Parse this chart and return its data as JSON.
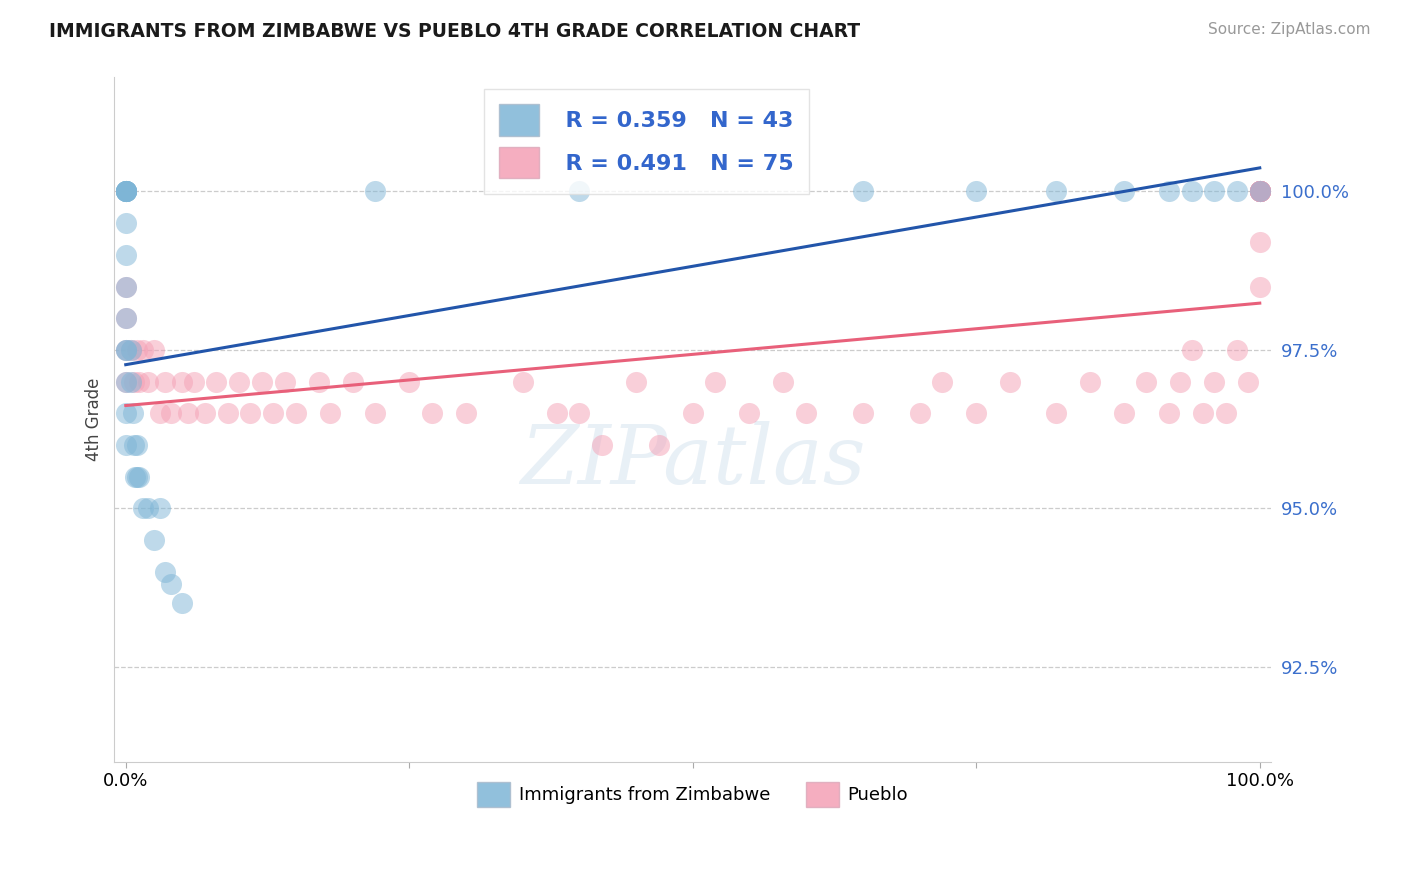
{
  "title": "IMMIGRANTS FROM ZIMBABWE VS PUEBLO 4TH GRADE CORRELATION CHART",
  "source": "Source: ZipAtlas.com",
  "ylabel": "4th Grade",
  "y_ticks": [
    92.5,
    95.0,
    97.5,
    100.0
  ],
  "y_tick_labels": [
    "92.5%",
    "95.0%",
    "97.5%",
    "100.0%"
  ],
  "ylim": [
    91.0,
    101.8
  ],
  "xlim": [
    -0.01,
    1.01
  ],
  "legend_blue_r": "R = 0.359",
  "legend_blue_n": "N = 43",
  "legend_pink_r": "R = 0.491",
  "legend_pink_n": "N = 75",
  "legend_label_blue": "Immigrants from Zimbabwe",
  "legend_label_pink": "Pueblo",
  "blue_color": "#7EB5D6",
  "pink_color": "#F4A0B5",
  "blue_line_color": "#2255AA",
  "pink_line_color": "#E8607A",
  "blue_points_x": [
    0.0,
    0.0,
    0.0,
    0.0,
    0.0,
    0.0,
    0.0,
    0.0,
    0.0,
    0.0,
    0.0,
    0.0,
    0.0,
    0.0,
    0.0,
    0.0,
    0.0,
    0.005,
    0.005,
    0.006,
    0.007,
    0.008,
    0.01,
    0.01,
    0.012,
    0.015,
    0.02,
    0.025,
    0.03,
    0.035,
    0.04,
    0.05,
    0.22,
    0.4,
    0.65,
    0.75,
    0.82,
    0.88,
    0.92,
    0.94,
    0.96,
    0.98,
    1.0
  ],
  "blue_points_y": [
    100.0,
    100.0,
    100.0,
    100.0,
    100.0,
    100.0,
    100.0,
    100.0,
    99.5,
    99.0,
    98.5,
    98.0,
    97.5,
    97.5,
    97.0,
    96.5,
    96.0,
    97.5,
    97.0,
    96.5,
    96.0,
    95.5,
    96.0,
    95.5,
    95.5,
    95.0,
    95.0,
    94.5,
    95.0,
    94.0,
    93.8,
    93.5,
    100.0,
    100.0,
    100.0,
    100.0,
    100.0,
    100.0,
    100.0,
    100.0,
    100.0,
    100.0,
    100.0
  ],
  "pink_points_x": [
    0.0,
    0.0,
    0.0,
    0.0,
    0.005,
    0.007,
    0.01,
    0.012,
    0.015,
    0.02,
    0.025,
    0.03,
    0.035,
    0.04,
    0.05,
    0.055,
    0.06,
    0.07,
    0.08,
    0.09,
    0.1,
    0.11,
    0.12,
    0.13,
    0.14,
    0.15,
    0.17,
    0.18,
    0.2,
    0.22,
    0.25,
    0.27,
    0.3,
    0.35,
    0.38,
    0.4,
    0.42,
    0.45,
    0.47,
    0.5,
    0.52,
    0.55,
    0.58,
    0.6,
    0.65,
    0.7,
    0.72,
    0.75,
    0.78,
    0.82,
    0.85,
    0.88,
    0.9,
    0.92,
    0.93,
    0.94,
    0.95,
    0.96,
    0.97,
    0.98,
    0.99,
    1.0,
    1.0,
    1.0,
    1.0,
    1.0,
    1.0,
    1.0,
    1.0,
    1.0,
    1.0,
    1.0,
    1.0,
    1.0,
    1.0
  ],
  "pink_points_y": [
    98.5,
    98.0,
    97.5,
    97.0,
    97.5,
    97.0,
    97.5,
    97.0,
    97.5,
    97.0,
    97.5,
    96.5,
    97.0,
    96.5,
    97.0,
    96.5,
    97.0,
    96.5,
    97.0,
    96.5,
    97.0,
    96.5,
    97.0,
    96.5,
    97.0,
    96.5,
    97.0,
    96.5,
    97.0,
    96.5,
    97.0,
    96.5,
    96.5,
    97.0,
    96.5,
    96.5,
    96.0,
    97.0,
    96.0,
    96.5,
    97.0,
    96.5,
    97.0,
    96.5,
    96.5,
    96.5,
    97.0,
    96.5,
    97.0,
    96.5,
    97.0,
    96.5,
    97.0,
    96.5,
    97.0,
    97.5,
    96.5,
    97.0,
    96.5,
    97.5,
    97.0,
    100.0,
    100.0,
    100.0,
    100.0,
    100.0,
    100.0,
    100.0,
    100.0,
    100.0,
    100.0,
    100.0,
    100.0,
    98.5,
    99.2
  ]
}
